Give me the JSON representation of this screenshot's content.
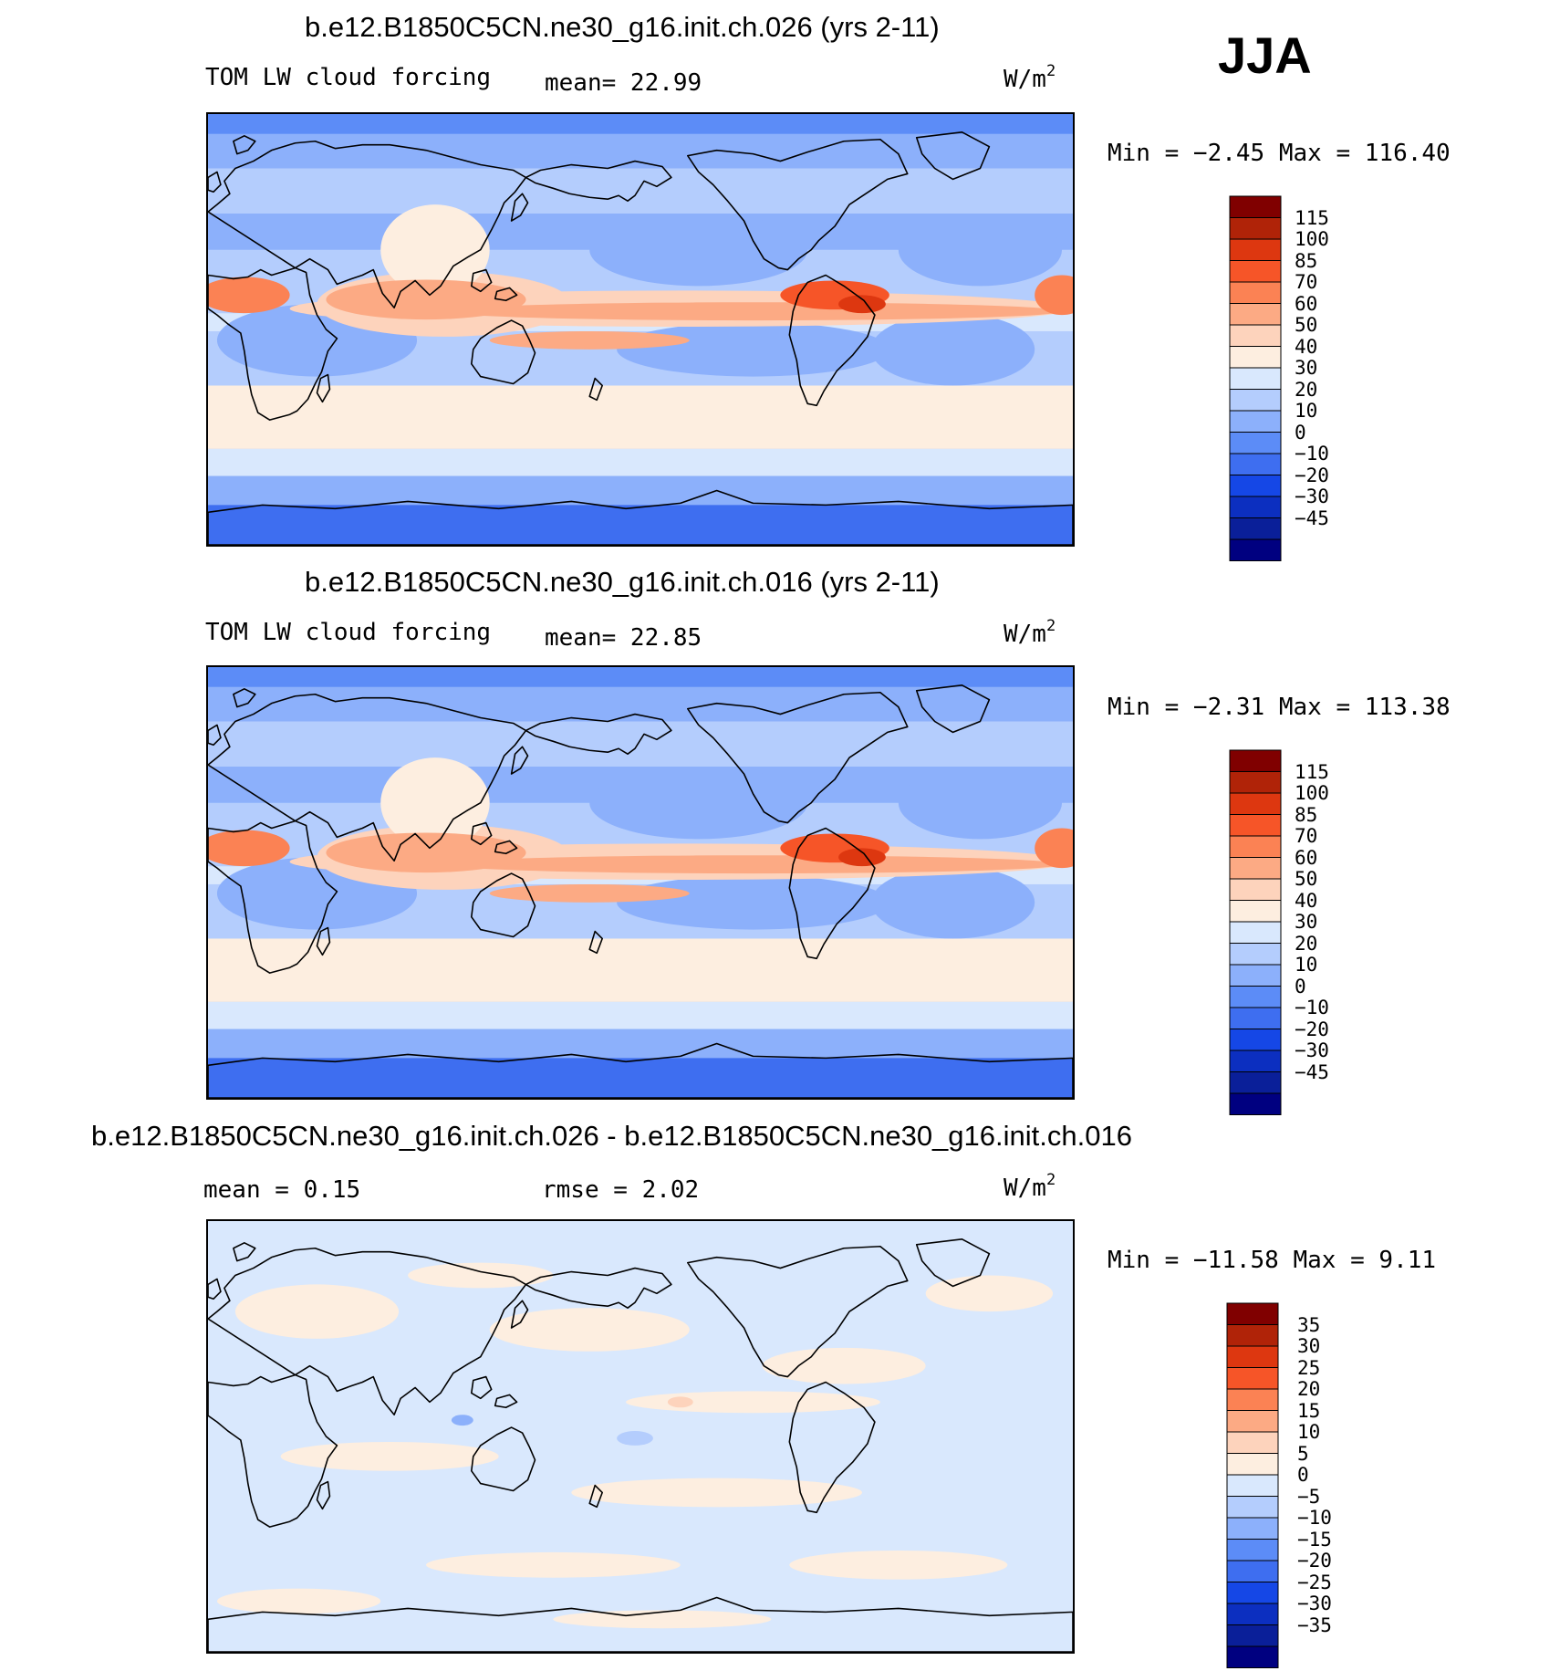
{
  "season": "JJA",
  "panels": [
    {
      "title": "b.e12.B1850C5CN.ne30_g16.init.ch.026 (yrs 2-11)",
      "left_label": "TOM LW cloud forcing",
      "center_label": "mean=   22.99",
      "units_base": "W/m",
      "units_exp": "2",
      "minmax": "Min =   −2.45 Max = 116.40",
      "map_kind": "abs",
      "colorbar": {
        "colors": [
          "#000080",
          "#0a1f99",
          "#0c2fc0",
          "#1547e6",
          "#3e6ef0",
          "#5c8cf7",
          "#8cb0fb",
          "#b4cdfd",
          "#d9e8fd",
          "#fdeee0",
          "#fdd3bc",
          "#fcaa84",
          "#fb8254",
          "#f65528",
          "#dd3710",
          "#b02308",
          "#800000"
        ],
        "labels": [
          "115",
          "100",
          "85",
          "70",
          "60",
          "50",
          "40",
          "30",
          "20",
          "10",
          "0",
          "−10",
          "−20",
          "−30",
          "−45"
        ]
      }
    },
    {
      "title": "b.e12.B1850C5CN.ne30_g16.init.ch.016 (yrs 2-11)",
      "left_label": "TOM LW cloud forcing",
      "center_label": "mean=   22.85",
      "units_base": "W/m",
      "units_exp": "2",
      "minmax": "Min =   −2.31 Max = 113.38",
      "map_kind": "abs",
      "colorbar": {
        "colors": [
          "#000080",
          "#0a1f99",
          "#0c2fc0",
          "#1547e6",
          "#3e6ef0",
          "#5c8cf7",
          "#8cb0fb",
          "#b4cdfd",
          "#d9e8fd",
          "#fdeee0",
          "#fdd3bc",
          "#fcaa84",
          "#fb8254",
          "#f65528",
          "#dd3710",
          "#b02308",
          "#800000"
        ],
        "labels": [
          "115",
          "100",
          "85",
          "70",
          "60",
          "50",
          "40",
          "30",
          "20",
          "10",
          "0",
          "−10",
          "−20",
          "−30",
          "−45"
        ]
      }
    },
    {
      "title": "b.e12.B1850C5CN.ne30_g16.init.ch.026 - b.e12.B1850C5CN.ne30_g16.init.ch.016",
      "left_label": "mean =    0.15",
      "center_label": "rmse =    2.02",
      "units_base": "W/m",
      "units_exp": "2",
      "minmax": "Min = −11.58 Max =    9.11",
      "map_kind": "diff",
      "colorbar": {
        "colors": [
          "#000080",
          "#0a1f99",
          "#0c2fc0",
          "#1547e6",
          "#3e6ef0",
          "#5c8cf7",
          "#8cb0fb",
          "#b4cdfd",
          "#d9e8fd",
          "#fdeee0",
          "#fdd3bc",
          "#fcaa84",
          "#fb8254",
          "#f65528",
          "#dd3710",
          "#b02308",
          "#800000"
        ],
        "labels": [
          "35",
          "30",
          "25",
          "20",
          "15",
          "10",
          "5",
          "0",
          "−5",
          "−10",
          "−15",
          "−20",
          "−25",
          "−30",
          "−35"
        ]
      }
    }
  ]
}
